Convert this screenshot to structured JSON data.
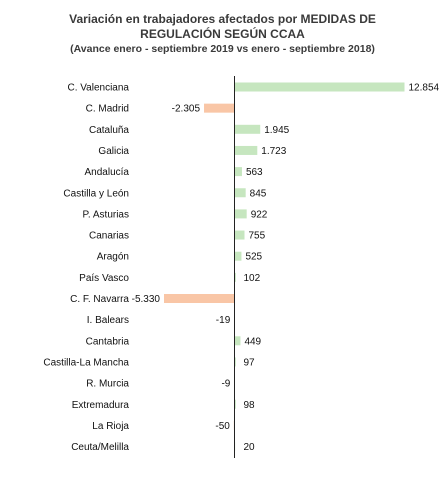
{
  "chart_data": {
    "type": "bar",
    "orientation": "horizontal",
    "title_line1": "Variación en trabajadores afectados por MEDIDAS DE",
    "title_line2": "REGULACIÓN SEGÚN CCAA",
    "subtitle": "(Avance enero - septiembre 2019  vs enero - septiembre 2018)",
    "categories": [
      "C. Valenciana",
      "C. Madrid",
      "Cataluña",
      "Galicia",
      "Andalucía",
      "Castilla y León",
      "P. Asturias",
      "Canarias",
      "Aragón",
      "País Vasco",
      "C. F. Navarra",
      "I. Balears",
      "Cantabria",
      "Castilla-La Mancha",
      "R. Murcia",
      "Extremadura",
      "La Rioja",
      "Ceuta/Melilla"
    ],
    "values": [
      12854,
      -2305,
      1945,
      1723,
      563,
      845,
      922,
      755,
      525,
      102,
      -5330,
      -19,
      449,
      97,
      -9,
      98,
      -50,
      20
    ],
    "value_labels": [
      "12.854",
      "-2.305",
      "1.945",
      "1.723",
      "563",
      "845",
      "922",
      "755",
      "525",
      "102",
      "-5.330",
      "-19",
      "449",
      "97",
      "-9",
      "98",
      "-50",
      "20"
    ],
    "positive_color": "#c6e6bf",
    "negative_color": "#f9c6a6",
    "axis_color": "#222222",
    "legend": "none",
    "grid": false
  }
}
